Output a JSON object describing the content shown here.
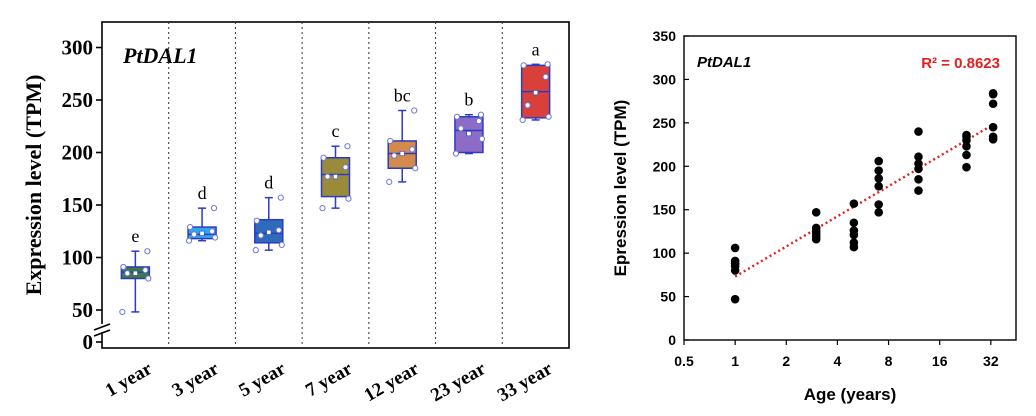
{
  "chart_data": [
    {
      "type": "box",
      "title": "PtDAL1",
      "ylabel": "Expression level (TPM)",
      "xlabel": "",
      "ylim": [
        0,
        300
      ],
      "yaxis_break": true,
      "yticks": [
        "0",
        "50",
        "100",
        "150",
        "200",
        "250",
        "300"
      ],
      "grid": "dotted vertical separators between groups",
      "categories": [
        "1 year",
        "3 year",
        "5 year",
        "7 year",
        "12 year",
        "23 year",
        "33 year"
      ],
      "letters": [
        "e",
        "d",
        "d",
        "c",
        "bc",
        "b",
        "a"
      ],
      "colors": [
        "#3f7a3c",
        "#2ea8ea",
        "#2f6bb8",
        "#9a8a3c",
        "#d48a4a",
        "#8c6cc6",
        "#d9403a"
      ],
      "boxes": [
        {
          "q1": 80,
          "median": 86,
          "q3": 91,
          "mean": 85,
          "whisker_low": 47,
          "whisker_high": 106,
          "points": [
            47,
            80,
            85,
            88,
            91,
            106
          ]
        },
        {
          "q1": 118,
          "median": 122,
          "q3": 129,
          "mean": 123,
          "whisker_low": 116,
          "whisker_high": 147,
          "points": [
            116,
            119,
            122,
            125,
            129,
            147
          ]
        },
        {
          "q1": 114,
          "median": 123,
          "q3": 136,
          "mean": 124,
          "whisker_low": 107,
          "whisker_high": 157,
          "points": [
            107,
            112,
            121,
            126,
            135,
            157
          ]
        },
        {
          "q1": 158,
          "median": 179,
          "q3": 195,
          "mean": 177,
          "whisker_low": 147,
          "whisker_high": 206,
          "points": [
            147,
            156,
            177,
            186,
            195,
            206
          ]
        },
        {
          "q1": 185,
          "median": 199,
          "q3": 211,
          "mean": 199,
          "whisker_low": 172,
          "whisker_high": 240,
          "points": [
            172,
            185,
            197,
            203,
            211,
            240
          ]
        },
        {
          "q1": 200,
          "median": 221,
          "q3": 234,
          "mean": 218,
          "whisker_low": 199,
          "whisker_high": 236,
          "points": [
            199,
            213,
            223,
            230,
            234,
            236
          ]
        },
        {
          "q1": 233,
          "median": 258,
          "q3": 283,
          "mean": 257,
          "whisker_low": 231,
          "whisker_high": 284,
          "points": [
            231,
            234,
            245,
            272,
            283,
            284
          ]
        }
      ]
    },
    {
      "type": "scatter",
      "title": "PtDAL1",
      "annotation": "R² = 0.8623",
      "xlabel": "Age (years)",
      "ylabel": "Epression level (TPM)",
      "xscale": "log2",
      "xlim": [
        0.5,
        45
      ],
      "ylim": [
        0,
        350
      ],
      "xticks": [
        0.5,
        1,
        2,
        4,
        8,
        16,
        32
      ],
      "xtick_labels": [
        "0.5",
        "1",
        "2",
        "4",
        "8",
        "16",
        "32"
      ],
      "yticks": [
        0,
        50,
        100,
        150,
        200,
        250,
        300,
        350
      ],
      "ytick_labels": [
        "0",
        "50",
        "100",
        "150",
        "200",
        "250",
        "300",
        "350"
      ],
      "trendline": {
        "style": "dotted",
        "color": "#e0201e",
        "start": [
          1,
          73
        ],
        "end": [
          33,
          248
        ]
      },
      "points": [
        {
          "x": 1,
          "y": 47
        },
        {
          "x": 1,
          "y": 80
        },
        {
          "x": 1,
          "y": 85
        },
        {
          "x": 1,
          "y": 88
        },
        {
          "x": 1,
          "y": 91
        },
        {
          "x": 1,
          "y": 106
        },
        {
          "x": 3,
          "y": 116
        },
        {
          "x": 3,
          "y": 119
        },
        {
          "x": 3,
          "y": 122
        },
        {
          "x": 3,
          "y": 125
        },
        {
          "x": 3,
          "y": 129
        },
        {
          "x": 3,
          "y": 147
        },
        {
          "x": 5,
          "y": 107
        },
        {
          "x": 5,
          "y": 112
        },
        {
          "x": 5,
          "y": 121
        },
        {
          "x": 5,
          "y": 126
        },
        {
          "x": 5,
          "y": 135
        },
        {
          "x": 5,
          "y": 157
        },
        {
          "x": 7,
          "y": 147
        },
        {
          "x": 7,
          "y": 156
        },
        {
          "x": 7,
          "y": 177
        },
        {
          "x": 7,
          "y": 186
        },
        {
          "x": 7,
          "y": 195
        },
        {
          "x": 7,
          "y": 206
        },
        {
          "x": 12,
          "y": 172
        },
        {
          "x": 12,
          "y": 185
        },
        {
          "x": 12,
          "y": 197
        },
        {
          "x": 12,
          "y": 203
        },
        {
          "x": 12,
          "y": 211
        },
        {
          "x": 12,
          "y": 240
        },
        {
          "x": 23,
          "y": 199
        },
        {
          "x": 23,
          "y": 213
        },
        {
          "x": 23,
          "y": 223
        },
        {
          "x": 23,
          "y": 230
        },
        {
          "x": 23,
          "y": 234
        },
        {
          "x": 23,
          "y": 236
        },
        {
          "x": 33,
          "y": 231
        },
        {
          "x": 33,
          "y": 234
        },
        {
          "x": 33,
          "y": 245
        },
        {
          "x": 33,
          "y": 272
        },
        {
          "x": 33,
          "y": 283
        },
        {
          "x": 33,
          "y": 284
        }
      ]
    }
  ]
}
